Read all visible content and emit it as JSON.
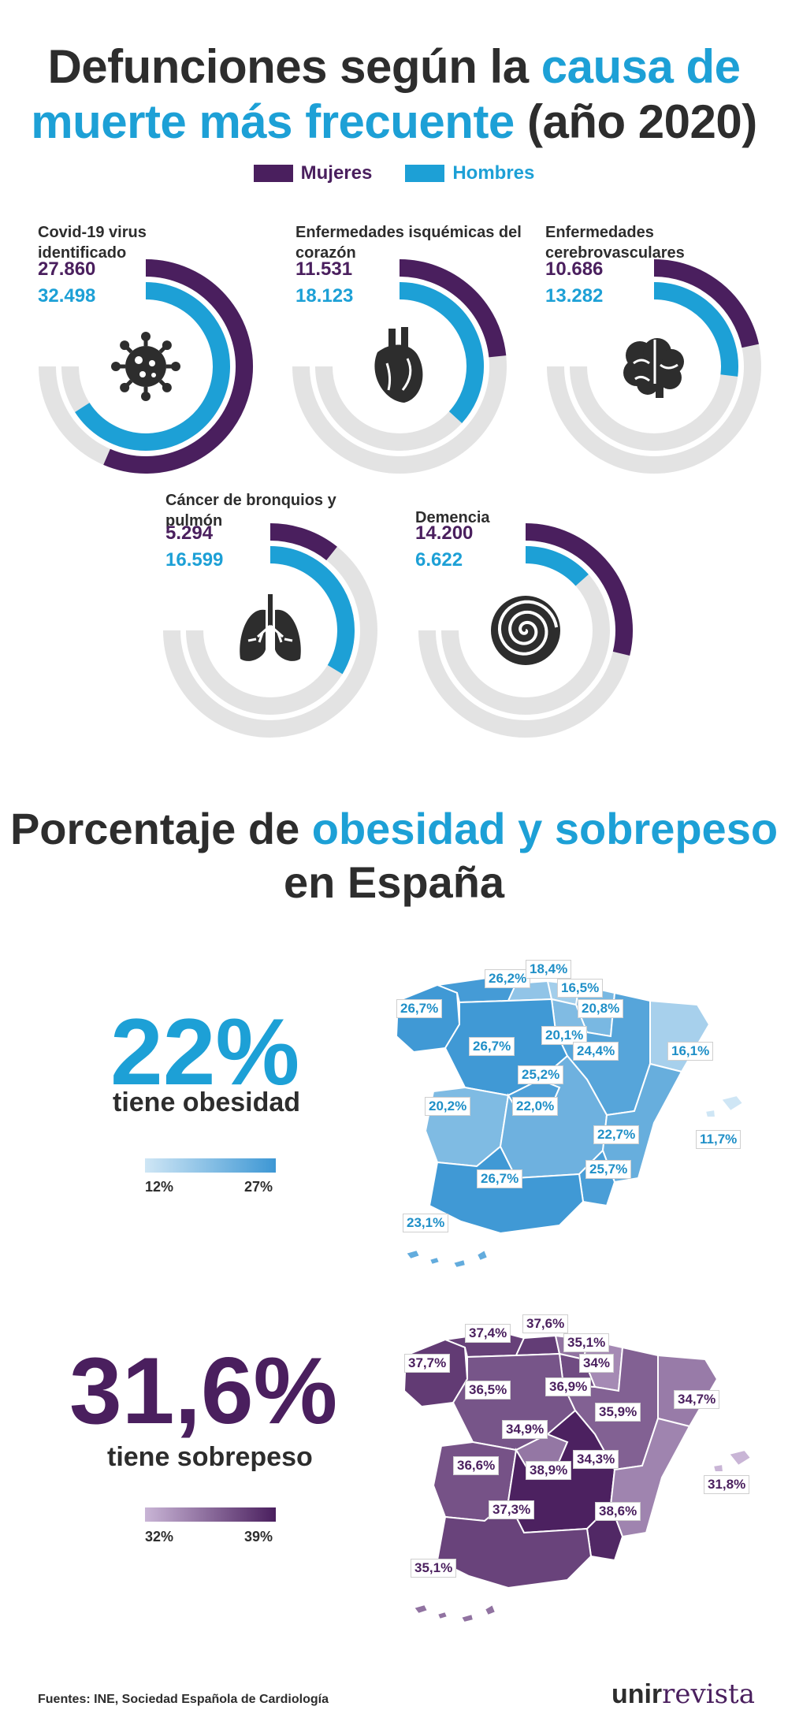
{
  "header": {
    "title_part1": "Defunciones según la ",
    "title_highlight": "causa de muerte más frecuente",
    "title_part2": " (año 2020)"
  },
  "legend": {
    "women_label": "Mujeres",
    "men_label": "Hombres"
  },
  "colors": {
    "women": "#4a1f5e",
    "men": "#1da0d6",
    "track": "#e3e3e3",
    "obesity_low": "#cfe6f5",
    "obesity_high": "#3d97d4",
    "overweight_low": "#c9b5d6",
    "overweight_high": "#4a1f5e"
  },
  "chart_data": [
    {
      "type": "radial-bar",
      "title": "Defunciones según la causa de muerte más frecuente (año 2020)",
      "series_names": [
        "Mujeres",
        "Hombres"
      ],
      "causes": [
        {
          "name": "Covid-19 virus identificado",
          "icon": "virus-icon",
          "women": 27860,
          "men": 32498,
          "women_label": "27.860",
          "men_label": "32.498"
        },
        {
          "name": "Enfermedades isquémicas del corazón",
          "icon": "heart-icon",
          "women": 11531,
          "men": 18123,
          "women_label": "11.531",
          "men_label": "18.123"
        },
        {
          "name": "Enfermedades cerebrovasculares",
          "icon": "brain-icon",
          "women": 10686,
          "men": 13282,
          "women_label": "10.686",
          "men_label": "13.282"
        },
        {
          "name": "Cáncer de bronquios y pulmón",
          "icon": "lungs-icon",
          "women": 5294,
          "men": 16599,
          "women_label": "5.294",
          "men_label": "16.599"
        },
        {
          "name": "Demencia",
          "icon": "spiral-icon",
          "women": 14200,
          "men": 6622,
          "women_label": "14.200",
          "men_label": "6.622"
        }
      ]
    },
    {
      "type": "choropleth",
      "title": "22% tiene obesidad",
      "scale": {
        "min": 12,
        "max": 27,
        "min_label": "12%",
        "max_label": "27%"
      },
      "regions": [
        {
          "name": "Asturias",
          "value": 26.2,
          "label": "26,2%"
        },
        {
          "name": "Cantabria",
          "value": 18.4,
          "label": "18,4%"
        },
        {
          "name": "País Vasco",
          "value": 16.5,
          "label": "16,5%"
        },
        {
          "name": "Galicia",
          "value": 26.7,
          "label": "26,7%"
        },
        {
          "name": "Navarra",
          "value": 20.8,
          "label": "20,8%"
        },
        {
          "name": "La Rioja",
          "value": 20.1,
          "label": "20,1%"
        },
        {
          "name": "Cataluña",
          "value": 16.1,
          "label": "16,1%"
        },
        {
          "name": "Castilla y León",
          "value": 26.7,
          "label": "26,7%"
        },
        {
          "name": "Aragón",
          "value": 24.4,
          "label": "24,4%"
        },
        {
          "name": "Madrid",
          "value": 25.2,
          "label": "25,2%"
        },
        {
          "name": "Extremadura",
          "value": 20.2,
          "label": "20,2%"
        },
        {
          "name": "Castilla-La Mancha",
          "value": 22.0,
          "label": "22,0%"
        },
        {
          "name": "Comunidad Valenciana",
          "value": 22.7,
          "label": "22,7%"
        },
        {
          "name": "Islas Baleares",
          "value": 11.7,
          "label": "11,7%"
        },
        {
          "name": "Murcia",
          "value": 25.7,
          "label": "25,7%"
        },
        {
          "name": "Andalucía",
          "value": 26.7,
          "label": "26,7%"
        },
        {
          "name": "Canarias",
          "value": 23.1,
          "label": "23,1%"
        }
      ]
    },
    {
      "type": "choropleth",
      "title": "31,6% tiene sobrepeso",
      "scale": {
        "min": 32,
        "max": 39,
        "min_label": "32%",
        "max_label": "39%"
      },
      "regions": [
        {
          "name": "Asturias",
          "value": 37.4,
          "label": "37,4%"
        },
        {
          "name": "Cantabria",
          "value": 37.6,
          "label": "37,6%"
        },
        {
          "name": "País Vasco",
          "value": 35.1,
          "label": "35,1%"
        },
        {
          "name": "Galicia",
          "value": 37.7,
          "label": "37,7%"
        },
        {
          "name": "Navarra",
          "value": 34,
          "label": "34%"
        },
        {
          "name": "La Rioja",
          "value": 36.9,
          "label": "36,9%"
        },
        {
          "name": "Castilla y León",
          "value": 36.5,
          "label": "36,5%"
        },
        {
          "name": "Aragón",
          "value": 35.9,
          "label": "35,9%"
        },
        {
          "name": "Cataluña",
          "value": 34.7,
          "label": "34,7%"
        },
        {
          "name": "Madrid",
          "value": 34.9,
          "label": "34,9%"
        },
        {
          "name": "Extremadura",
          "value": 36.6,
          "label": "36,6%"
        },
        {
          "name": "Castilla-La Mancha",
          "value": 38.9,
          "label": "38,9%"
        },
        {
          "name": "Comunidad Valenciana",
          "value": 34.3,
          "label": "34,3%"
        },
        {
          "name": "Islas Baleares",
          "value": 31.8,
          "label": "31,8%"
        },
        {
          "name": "Murcia",
          "value": 38.6,
          "label": "38,6%"
        },
        {
          "name": "Andalucía",
          "value": 37.3,
          "label": "37,3%"
        },
        {
          "name": "Canarias",
          "value": 35.1,
          "label": "35,1%"
        }
      ]
    }
  ],
  "section2": {
    "title_part1": "Porcentaje de ",
    "title_highlight": "obesidad y sobrepeso",
    "title_part2": " en España"
  },
  "obesity": {
    "big": "22%",
    "sub": "tiene obesidad"
  },
  "overweight": {
    "big": "31,6%",
    "sub": "tiene sobrepeso"
  },
  "footer": {
    "sources": "Fuentes: INE, Sociedad Española de Cardiología",
    "logo_bold": "unir",
    "logo_rest": "revista"
  }
}
